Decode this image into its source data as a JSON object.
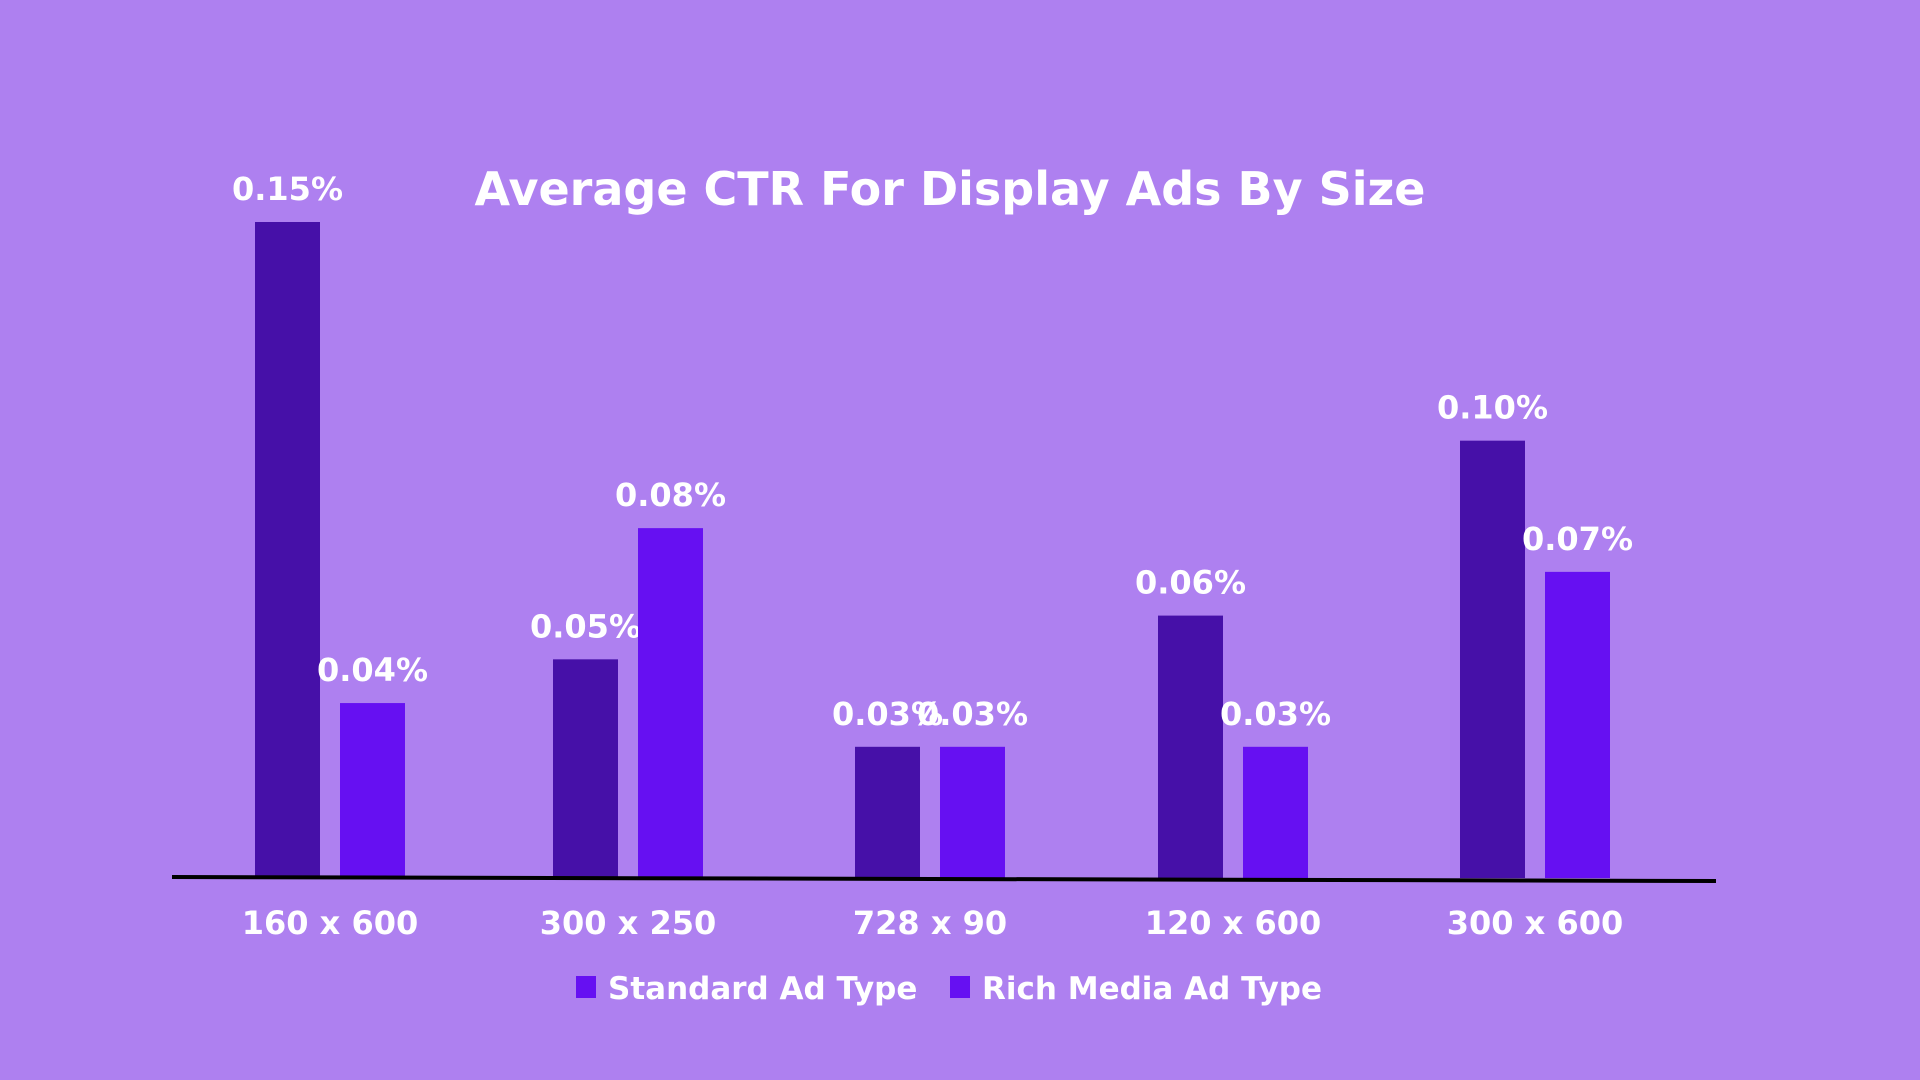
{
  "chart_data": {
    "type": "bar",
    "title": "Average CTR For Display Ads By Size",
    "xlabel": "",
    "ylabel": "",
    "categories": [
      "160 x 600",
      "300 x 250",
      "728 x 90",
      "120 x 600",
      "300 x 600"
    ],
    "series": [
      {
        "name": "Standard Ad Type",
        "values": [
          0.15,
          0.05,
          0.03,
          0.06,
          0.1
        ],
        "labels": [
          "0.15%",
          "0.05%",
          "0.03%",
          "0.06%",
          "0.10%"
        ],
        "color": "#4610A8"
      },
      {
        "name": "Rich Media Ad Type",
        "values": [
          0.04,
          0.08,
          0.03,
          0.03,
          0.07
        ],
        "labels": [
          "0.04%",
          "0.08%",
          "0.03%",
          "0.03%",
          "0.07%"
        ],
        "color": "#6610F2"
      }
    ],
    "legend_colors": [
      "#6610F2",
      "#6610F2"
    ],
    "ylim": [
      0,
      0.15
    ],
    "grid": false,
    "legend_position": "bottom",
    "background": "#AE80F0"
  }
}
